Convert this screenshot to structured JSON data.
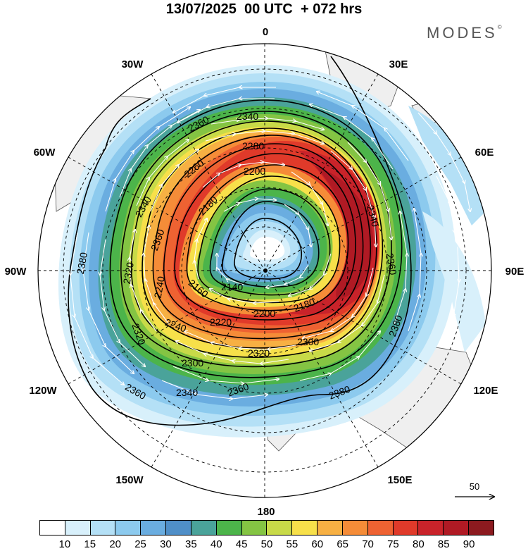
{
  "header": {
    "title": "13/07/2025  00 UTC  + 072 hrs",
    "brand": "MODES",
    "brand_mark": "©"
  },
  "map": {
    "projection": "south polar stereographic",
    "longitude_labels": {
      "top": "0",
      "top_right": "30E",
      "right_upper": "60E",
      "right": "90E",
      "right_lower": "120E",
      "bottom_right": "150E",
      "bottom": "180",
      "bottom_left": "150W",
      "left_lower": "120W",
      "left": "90W",
      "left_upper": "60W",
      "top_left": "30W"
    },
    "contour_labels": [
      "2340",
      "2360",
      "2280",
      "2260",
      "2200",
      "2340",
      "2180",
      "2340",
      "2360",
      "2380",
      "2360",
      "2320",
      "2240",
      "2140",
      "2160",
      "2180",
      "2200",
      "2220",
      "2240",
      "2380",
      "2300",
      "2320",
      "2300",
      "2320",
      "2340",
      "2360",
      "2360",
      "2380"
    ],
    "field_colors": {
      "land": "#efefef",
      "contour_line": "#000000",
      "wind_arrow": "#ffffff"
    }
  },
  "colorbar": {
    "ticks": [
      "10",
      "15",
      "20",
      "25",
      "30",
      "35",
      "40",
      "45",
      "50",
      "55",
      "60",
      "65",
      "70",
      "75",
      "80",
      "85",
      "90"
    ],
    "colors": [
      "#ffffff",
      "#d8f0fb",
      "#b4e0f6",
      "#8ccaee",
      "#6aade0",
      "#4f8fc8",
      "#4aa39a",
      "#4cb44a",
      "#84c443",
      "#c8da48",
      "#f7e04a",
      "#f7b043",
      "#f58c38",
      "#ee6232",
      "#e03a2a",
      "#c9232a",
      "#b01a24",
      "#8c1a1f"
    ]
  },
  "vector_reference": {
    "label": "50"
  }
}
